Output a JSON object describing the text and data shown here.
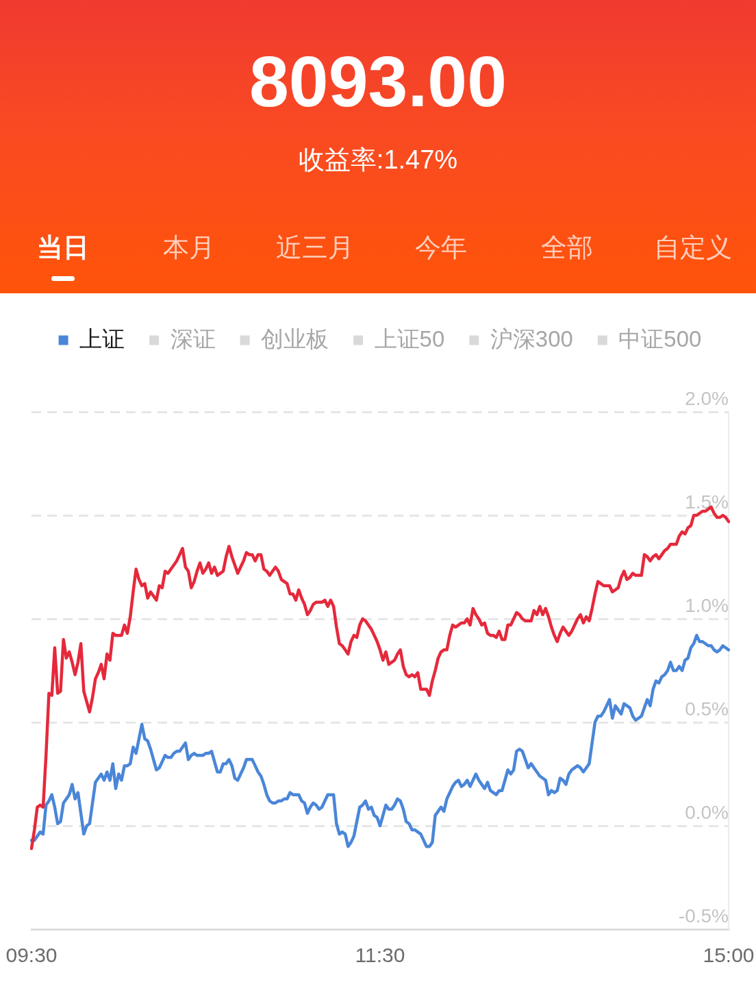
{
  "chart_data": {
    "type": "line",
    "title": "8093.00",
    "subtitle": "收益率:1.47%",
    "annotations": [
      "当日",
      "本月",
      "近三月",
      "今年",
      "全部",
      "自定义"
    ],
    "categories": [
      "09:30",
      null,
      null,
      null,
      null,
      null,
      null,
      null,
      null,
      null,
      null,
      null,
      null,
      null,
      null,
      null,
      null,
      null,
      null,
      null,
      null,
      null,
      null,
      null,
      null,
      null,
      null,
      null,
      null,
      null,
      null,
      null,
      null,
      null,
      null,
      null,
      null,
      null,
      null,
      null,
      null,
      null,
      null,
      null,
      null,
      null,
      null,
      null,
      null,
      null,
      null,
      null,
      null,
      null,
      null,
      null,
      null,
      null,
      null,
      null,
      null,
      null,
      null,
      null,
      null,
      null,
      null,
      null,
      null,
      null,
      null,
      null,
      null,
      null,
      null,
      null,
      null,
      null,
      null,
      null,
      null,
      null,
      null,
      null,
      null,
      null,
      null,
      null,
      null,
      null,
      null,
      null,
      null,
      null,
      null,
      null,
      null,
      null,
      null,
      null,
      null,
      null,
      null,
      null,
      null,
      null,
      null,
      null,
      null,
      null,
      null,
      null,
      null,
      null,
      null,
      null,
      null,
      null,
      null,
      null,
      "11:30",
      null,
      null,
      null,
      null,
      null,
      null,
      null,
      null,
      null,
      null,
      null,
      null,
      null,
      null,
      null,
      null,
      null,
      null,
      null,
      null,
      null,
      null,
      null,
      null,
      null,
      null,
      null,
      null,
      null,
      null,
      null,
      null,
      null,
      null,
      null,
      null,
      null,
      null,
      null,
      null,
      null,
      null,
      null,
      null,
      null,
      null,
      null,
      null,
      null,
      null,
      null,
      null,
      null,
      null,
      null,
      null,
      null,
      null,
      null,
      null,
      null,
      null,
      null,
      null,
      null,
      null,
      null,
      null,
      null,
      null,
      null,
      null,
      null,
      null,
      null,
      null,
      null,
      null,
      null,
      null,
      null,
      null,
      null,
      null,
      null,
      null,
      null,
      null,
      null,
      null,
      null,
      null,
      null,
      null,
      null,
      null,
      null,
      null,
      null,
      null,
      null,
      null,
      null,
      null,
      null,
      null,
      null,
      null,
      null,
      null,
      null,
      null,
      null,
      null,
      null,
      null,
      null,
      null,
      null,
      "15:00"
    ],
    "ylim": [
      -0.5,
      2.0
    ],
    "yticks": [
      {
        "value": -0.5,
        "label": "-0.5%"
      },
      {
        "value": 0,
        "label": "0.0%"
      },
      {
        "value": 0.5,
        "label": "0.5%"
      },
      {
        "value": 1.0,
        "label": "1.0%"
      },
      {
        "value": 1.5,
        "label": "1.5%"
      },
      {
        "value": 2.0,
        "label": "2.0%"
      }
    ],
    "grid": "y",
    "legend": "top",
    "marker": "none",
    "line_style": "solid",
    "series": [
      {
        "color": "#e5293b",
        "values": [
          -0.11,
          -0.02,
          0.09,
          0.1,
          0.09,
          0.34,
          0.64,
          0.63,
          0.86,
          0.64,
          0.65,
          0.9,
          0.81,
          0.84,
          0.79,
          0.73,
          0.79,
          0.88,
          0.65,
          0.6,
          0.55,
          0.62,
          0.71,
          0.74,
          0.78,
          0.71,
          0.83,
          0.8,
          0.93,
          0.92,
          0.92,
          0.92,
          0.97,
          0.93,
          1.01,
          1.13,
          1.24,
          1.19,
          1.16,
          1.17,
          1.1,
          1.13,
          1.11,
          1.09,
          1.16,
          1.15,
          1.23,
          1.22,
          1.24,
          1.26,
          1.28,
          1.31,
          1.34,
          1.25,
          1.23,
          1.15,
          1.18,
          1.23,
          1.27,
          1.22,
          1.24,
          1.27,
          1.22,
          1.25,
          1.21,
          1.22,
          1.23,
          1.3,
          1.35,
          1.3,
          1.26,
          1.22,
          1.25,
          1.28,
          1.32,
          1.31,
          1.31,
          1.28,
          1.31,
          1.31,
          1.24,
          1.23,
          1.21,
          1.23,
          1.25,
          1.23,
          1.19,
          1.18,
          1.17,
          1.12,
          1.12,
          1.09,
          1.14,
          1.1,
          1.07,
          1.02,
          1.04,
          1.07,
          1.08,
          1.08,
          1.08,
          1.09,
          1.06,
          1.09,
          1.06,
          0.96,
          0.88,
          0.87,
          0.85,
          0.83,
          0.89,
          0.92,
          0.91,
          0.97,
          1.0,
          0.99,
          0.97,
          0.95,
          0.92,
          0.89,
          0.85,
          0.8,
          0.84,
          0.78,
          0.79,
          0.8,
          0.83,
          0.85,
          0.77,
          0.73,
          0.72,
          0.73,
          0.72,
          0.74,
          0.66,
          0.66,
          0.66,
          0.63,
          0.7,
          0.75,
          0.81,
          0.84,
          0.85,
          0.85,
          0.92,
          0.97,
          0.96,
          0.97,
          0.98,
          0.98,
          1.0,
          0.97,
          1.05,
          1.02,
          1.0,
          0.97,
          0.98,
          0.93,
          0.92,
          0.92,
          0.91,
          0.94,
          0.9,
          0.9,
          0.97,
          0.97,
          1.0,
          1.03,
          1.02,
          1.0,
          0.99,
          0.99,
          0.99,
          1.04,
          1.02,
          1.06,
          1.02,
          1.05,
          1.01,
          0.96,
          0.92,
          0.89,
          0.93,
          0.96,
          0.94,
          0.92,
          0.94,
          0.97,
          1.0,
          1.02,
          0.98,
          1.01,
          0.99,
          1.05,
          1.12,
          1.18,
          1.17,
          1.16,
          1.16,
          1.16,
          1.13,
          1.14,
          1.15,
          1.2,
          1.23,
          1.19,
          1.2,
          1.22,
          1.21,
          1.21,
          1.21,
          1.31,
          1.3,
          1.28,
          1.3,
          1.31,
          1.29,
          1.31,
          1.33,
          1.34,
          1.36,
          1.36,
          1.36,
          1.4,
          1.42,
          1.41,
          1.44,
          1.45,
          1.5,
          1.5,
          1.51,
          1.52,
          1.52,
          1.53,
          1.54,
          1.51,
          1.49,
          1.49,
          1.5,
          1.49,
          1.47
        ]
      },
      {
        "name": "上证",
        "color": "#4a86d8",
        "values": [
          -0.07,
          -0.07,
          -0.05,
          -0.03,
          -0.04,
          0.1,
          0.12,
          0.15,
          0.09,
          0.01,
          0.02,
          0.11,
          0.13,
          0.15,
          0.2,
          0.13,
          0.16,
          0.06,
          -0.04,
          0.0,
          0.01,
          0.11,
          0.21,
          0.23,
          0.25,
          0.22,
          0.26,
          0.22,
          0.3,
          0.18,
          0.25,
          0.22,
          0.29,
          0.29,
          0.3,
          0.38,
          0.35,
          0.42,
          0.49,
          0.42,
          0.41,
          0.37,
          0.32,
          0.27,
          0.28,
          0.31,
          0.34,
          0.33,
          0.33,
          0.35,
          0.36,
          0.36,
          0.38,
          0.4,
          0.32,
          0.34,
          0.35,
          0.34,
          0.34,
          0.34,
          0.35,
          0.35,
          0.36,
          0.31,
          0.26,
          0.26,
          0.3,
          0.3,
          0.32,
          0.29,
          0.23,
          0.22,
          0.25,
          0.28,
          0.32,
          0.32,
          0.32,
          0.29,
          0.26,
          0.24,
          0.2,
          0.15,
          0.12,
          0.11,
          0.11,
          0.12,
          0.12,
          0.13,
          0.13,
          0.16,
          0.15,
          0.15,
          0.15,
          0.12,
          0.11,
          0.06,
          0.09,
          0.11,
          0.1,
          0.08,
          0.09,
          0.12,
          0.15,
          0.15,
          0.15,
          0.01,
          -0.04,
          -0.03,
          -0.04,
          -0.1,
          -0.08,
          -0.05,
          0.02,
          0.09,
          0.1,
          0.12,
          0.08,
          0.09,
          0.05,
          0.04,
          0.0,
          0.05,
          0.1,
          0.08,
          0.08,
          0.1,
          0.13,
          0.12,
          0.08,
          0.02,
          0.01,
          -0.02,
          -0.02,
          -0.03,
          -0.04,
          -0.07,
          -0.1,
          -0.1,
          -0.08,
          0.05,
          0.07,
          0.09,
          0.07,
          0.13,
          0.16,
          0.19,
          0.21,
          0.22,
          0.19,
          0.2,
          0.22,
          0.19,
          0.22,
          0.25,
          0.22,
          0.2,
          0.18,
          0.21,
          0.17,
          0.16,
          0.15,
          0.17,
          0.17,
          0.22,
          0.27,
          0.25,
          0.27,
          0.36,
          0.37,
          0.36,
          0.32,
          0.28,
          0.3,
          0.28,
          0.26,
          0.24,
          0.23,
          0.22,
          0.15,
          0.17,
          0.16,
          0.17,
          0.23,
          0.22,
          0.2,
          0.25,
          0.27,
          0.28,
          0.29,
          0.28,
          0.26,
          0.28,
          0.3,
          0.4,
          0.5,
          0.53,
          0.53,
          0.55,
          0.58,
          0.61,
          0.52,
          0.58,
          0.56,
          0.54,
          0.59,
          0.58,
          0.57,
          0.53,
          0.51,
          0.52,
          0.53,
          0.57,
          0.61,
          0.58,
          0.66,
          0.7,
          0.69,
          0.72,
          0.73,
          0.75,
          0.79,
          0.75,
          0.75,
          0.77,
          0.75,
          0.8,
          0.81,
          0.86,
          0.88,
          0.92,
          0.89,
          0.89,
          0.88,
          0.87,
          0.87,
          0.85,
          0.84,
          0.85,
          0.87,
          0.86,
          0.85
        ]
      },
      {
        "name": "深证",
        "color": "#d9d9d9",
        "values": [
          null,
          null,
          null,
          null,
          null,
          null,
          null,
          null,
          null,
          null,
          null,
          null,
          null,
          null,
          null,
          null,
          null,
          null,
          null,
          null,
          null,
          null,
          null,
          null,
          null,
          null,
          null,
          null,
          null,
          null,
          null,
          null,
          null,
          null,
          null,
          null,
          null,
          null,
          null,
          null,
          null,
          null,
          null,
          null,
          null,
          null,
          null,
          null,
          null,
          null,
          null,
          null,
          null,
          null,
          null,
          null,
          null,
          null,
          null,
          null,
          null,
          null,
          null,
          null,
          null,
          null,
          null,
          null,
          null,
          null,
          null,
          null,
          null,
          null,
          null,
          null,
          null,
          null,
          null,
          null,
          null,
          null,
          null,
          null,
          null,
          null,
          null,
          null,
          null,
          null,
          null,
          null,
          null,
          null,
          null,
          null,
          null,
          null,
          null,
          null,
          null,
          null,
          null,
          null,
          null,
          null,
          null,
          null,
          null,
          null,
          null,
          null,
          null,
          null,
          null,
          null,
          null,
          null,
          null,
          null,
          null,
          null,
          null,
          null,
          null,
          null,
          null,
          null,
          null,
          null,
          null,
          null,
          null,
          null,
          null,
          null,
          null,
          null,
          null,
          null,
          null,
          null,
          null,
          null,
          null,
          null,
          null,
          null,
          null,
          null,
          null,
          null,
          null,
          null,
          null,
          null,
          null,
          null,
          null,
          null,
          null,
          null,
          null,
          null,
          null,
          null,
          null,
          null,
          null,
          null,
          null,
          null,
          null,
          null,
          null,
          null,
          null,
          null,
          null,
          null,
          null,
          null,
          null,
          null,
          null,
          null,
          null,
          null,
          null,
          null,
          null,
          null,
          null,
          null,
          null,
          null,
          null,
          null,
          null,
          null,
          null,
          null,
          null,
          null,
          null,
          null,
          null,
          null,
          null,
          null,
          null,
          null,
          null,
          null,
          null,
          null,
          null,
          null,
          null,
          null,
          null,
          null,
          null,
          null,
          null,
          null,
          null,
          null,
          null,
          null,
          null,
          null,
          null,
          null,
          null,
          null,
          null,
          null,
          null,
          null,
          null
        ]
      },
      {
        "name": "创业板",
        "color": "#d9d9d9",
        "values": [
          null,
          null,
          null,
          null,
          null,
          null,
          null,
          null,
          null,
          null,
          null,
          null,
          null,
          null,
          null,
          null,
          null,
          null,
          null,
          null,
          null,
          null,
          null,
          null,
          null,
          null,
          null,
          null,
          null,
          null,
          null,
          null,
          null,
          null,
          null,
          null,
          null,
          null,
          null,
          null,
          null,
          null,
          null,
          null,
          null,
          null,
          null,
          null,
          null,
          null,
          null,
          null,
          null,
          null,
          null,
          null,
          null,
          null,
          null,
          null,
          null,
          null,
          null,
          null,
          null,
          null,
          null,
          null,
          null,
          null,
          null,
          null,
          null,
          null,
          null,
          null,
          null,
          null,
          null,
          null,
          null,
          null,
          null,
          null,
          null,
          null,
          null,
          null,
          null,
          null,
          null,
          null,
          null,
          null,
          null,
          null,
          null,
          null,
          null,
          null,
          null,
          null,
          null,
          null,
          null,
          null,
          null,
          null,
          null,
          null,
          null,
          null,
          null,
          null,
          null,
          null,
          null,
          null,
          null,
          null,
          null,
          null,
          null,
          null,
          null,
          null,
          null,
          null,
          null,
          null,
          null,
          null,
          null,
          null,
          null,
          null,
          null,
          null,
          null,
          null,
          null,
          null,
          null,
          null,
          null,
          null,
          null,
          null,
          null,
          null,
          null,
          null,
          null,
          null,
          null,
          null,
          null,
          null,
          null,
          null,
          null,
          null,
          null,
          null,
          null,
          null,
          null,
          null,
          null,
          null,
          null,
          null,
          null,
          null,
          null,
          null,
          null,
          null,
          null,
          null,
          null,
          null,
          null,
          null,
          null,
          null,
          null,
          null,
          null,
          null,
          null,
          null,
          null,
          null,
          null,
          null,
          null,
          null,
          null,
          null,
          null,
          null,
          null,
          null,
          null,
          null,
          null,
          null,
          null,
          null,
          null,
          null,
          null,
          null,
          null,
          null,
          null,
          null,
          null,
          null,
          null,
          null,
          null,
          null,
          null,
          null,
          null,
          null,
          null,
          null,
          null,
          null,
          null,
          null,
          null,
          null,
          null,
          null,
          null,
          null,
          null
        ]
      },
      {
        "name": "上证50",
        "color": "#d9d9d9",
        "values": [
          null,
          null,
          null,
          null,
          null,
          null,
          null,
          null,
          null,
          null,
          null,
          null,
          null,
          null,
          null,
          null,
          null,
          null,
          null,
          null,
          null,
          null,
          null,
          null,
          null,
          null,
          null,
          null,
          null,
          null,
          null,
          null,
          null,
          null,
          null,
          null,
          null,
          null,
          null,
          null,
          null,
          null,
          null,
          null,
          null,
          null,
          null,
          null,
          null,
          null,
          null,
          null,
          null,
          null,
          null,
          null,
          null,
          null,
          null,
          null,
          null,
          null,
          null,
          null,
          null,
          null,
          null,
          null,
          null,
          null,
          null,
          null,
          null,
          null,
          null,
          null,
          null,
          null,
          null,
          null,
          null,
          null,
          null,
          null,
          null,
          null,
          null,
          null,
          null,
          null,
          null,
          null,
          null,
          null,
          null,
          null,
          null,
          null,
          null,
          null,
          null,
          null,
          null,
          null,
          null,
          null,
          null,
          null,
          null,
          null,
          null,
          null,
          null,
          null,
          null,
          null,
          null,
          null,
          null,
          null,
          null,
          null,
          null,
          null,
          null,
          null,
          null,
          null,
          null,
          null,
          null,
          null,
          null,
          null,
          null,
          null,
          null,
          null,
          null,
          null,
          null,
          null,
          null,
          null,
          null,
          null,
          null,
          null,
          null,
          null,
          null,
          null,
          null,
          null,
          null,
          null,
          null,
          null,
          null,
          null,
          null,
          null,
          null,
          null,
          null,
          null,
          null,
          null,
          null,
          null,
          null,
          null,
          null,
          null,
          null,
          null,
          null,
          null,
          null,
          null,
          null,
          null,
          null,
          null,
          null,
          null,
          null,
          null,
          null,
          null,
          null,
          null,
          null,
          null,
          null,
          null,
          null,
          null,
          null,
          null,
          null,
          null,
          null,
          null,
          null,
          null,
          null,
          null,
          null,
          null,
          null,
          null,
          null,
          null,
          null,
          null,
          null,
          null,
          null,
          null,
          null,
          null,
          null,
          null,
          null,
          null,
          null,
          null,
          null,
          null,
          null,
          null,
          null,
          null,
          null,
          null,
          null,
          null,
          null,
          null,
          null
        ]
      },
      {
        "name": "沪深300",
        "color": "#d9d9d9",
        "values": [
          null,
          null,
          null,
          null,
          null,
          null,
          null,
          null,
          null,
          null,
          null,
          null,
          null,
          null,
          null,
          null,
          null,
          null,
          null,
          null,
          null,
          null,
          null,
          null,
          null,
          null,
          null,
          null,
          null,
          null,
          null,
          null,
          null,
          null,
          null,
          null,
          null,
          null,
          null,
          null,
          null,
          null,
          null,
          null,
          null,
          null,
          null,
          null,
          null,
          null,
          null,
          null,
          null,
          null,
          null,
          null,
          null,
          null,
          null,
          null,
          null,
          null,
          null,
          null,
          null,
          null,
          null,
          null,
          null,
          null,
          null,
          null,
          null,
          null,
          null,
          null,
          null,
          null,
          null,
          null,
          null,
          null,
          null,
          null,
          null,
          null,
          null,
          null,
          null,
          null,
          null,
          null,
          null,
          null,
          null,
          null,
          null,
          null,
          null,
          null,
          null,
          null,
          null,
          null,
          null,
          null,
          null,
          null,
          null,
          null,
          null,
          null,
          null,
          null,
          null,
          null,
          null,
          null,
          null,
          null,
          null,
          null,
          null,
          null,
          null,
          null,
          null,
          null,
          null,
          null,
          null,
          null,
          null,
          null,
          null,
          null,
          null,
          null,
          null,
          null,
          null,
          null,
          null,
          null,
          null,
          null,
          null,
          null,
          null,
          null,
          null,
          null,
          null,
          null,
          null,
          null,
          null,
          null,
          null,
          null,
          null,
          null,
          null,
          null,
          null,
          null,
          null,
          null,
          null,
          null,
          null,
          null,
          null,
          null,
          null,
          null,
          null,
          null,
          null,
          null,
          null,
          null,
          null,
          null,
          null,
          null,
          null,
          null,
          null,
          null,
          null,
          null,
          null,
          null,
          null,
          null,
          null,
          null,
          null,
          null,
          null,
          null,
          null,
          null,
          null,
          null,
          null,
          null,
          null,
          null,
          null,
          null,
          null,
          null,
          null,
          null,
          null,
          null,
          null,
          null,
          null,
          null,
          null,
          null,
          null,
          null,
          null,
          null,
          null,
          null,
          null,
          null,
          null,
          null,
          null,
          null,
          null,
          null,
          null,
          null,
          null
        ]
      },
      {
        "name": "中证500",
        "color": "#d9d9d9",
        "values": [
          null,
          null,
          null,
          null,
          null,
          null,
          null,
          null,
          null,
          null,
          null,
          null,
          null,
          null,
          null,
          null,
          null,
          null,
          null,
          null,
          null,
          null,
          null,
          null,
          null,
          null,
          null,
          null,
          null,
          null,
          null,
          null,
          null,
          null,
          null,
          null,
          null,
          null,
          null,
          null,
          null,
          null,
          null,
          null,
          null,
          null,
          null,
          null,
          null,
          null,
          null,
          null,
          null,
          null,
          null,
          null,
          null,
          null,
          null,
          null,
          null,
          null,
          null,
          null,
          null,
          null,
          null,
          null,
          null,
          null,
          null,
          null,
          null,
          null,
          null,
          null,
          null,
          null,
          null,
          null,
          null,
          null,
          null,
          null,
          null,
          null,
          null,
          null,
          null,
          null,
          null,
          null,
          null,
          null,
          null,
          null,
          null,
          null,
          null,
          null,
          null,
          null,
          null,
          null,
          null,
          null,
          null,
          null,
          null,
          null,
          null,
          null,
          null,
          null,
          null,
          null,
          null,
          null,
          null,
          null,
          null,
          null,
          null,
          null,
          null,
          null,
          null,
          null,
          null,
          null,
          null,
          null,
          null,
          null,
          null,
          null,
          null,
          null,
          null,
          null,
          null,
          null,
          null,
          null,
          null,
          null,
          null,
          null,
          null,
          null,
          null,
          null,
          null,
          null,
          null,
          null,
          null,
          null,
          null,
          null,
          null,
          null,
          null,
          null,
          null,
          null,
          null,
          null,
          null,
          null,
          null,
          null,
          null,
          null,
          null,
          null,
          null,
          null,
          null,
          null,
          null,
          null,
          null,
          null,
          null,
          null,
          null,
          null,
          null,
          null,
          null,
          null,
          null,
          null,
          null,
          null,
          null,
          null,
          null,
          null,
          null,
          null,
          null,
          null,
          null,
          null,
          null,
          null,
          null,
          null,
          null,
          null,
          null,
          null,
          null,
          null,
          null,
          null,
          null,
          null,
          null,
          null,
          null,
          null,
          null,
          null,
          null,
          null,
          null,
          null,
          null,
          null,
          null,
          null,
          null,
          null,
          null,
          null,
          null,
          null,
          null
        ]
      }
    ]
  }
}
